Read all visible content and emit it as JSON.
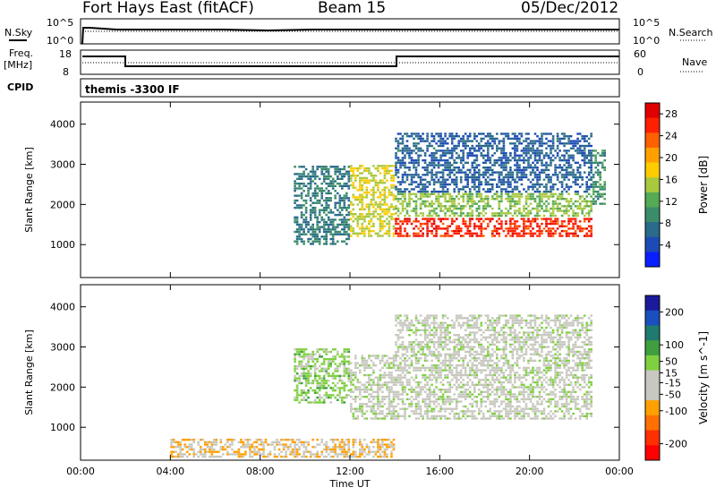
{
  "header": {
    "station": "Fort Hays East (fitACF)",
    "beam": "Beam 15",
    "date": "05/Dec/2012"
  },
  "strip": {
    "nsky_label": "N.Sky",
    "nsearch_label": "N.Search",
    "freq_label_1": "Freq.",
    "freq_label_2": "[MHz]",
    "nave_label": "Nave",
    "cpid_label": "CPID",
    "cpid_value": "themis -3300 IF",
    "noise_ticks": [
      "10^5",
      "10^0"
    ],
    "freq_ticks": [
      "18",
      "8"
    ],
    "nave_ticks": [
      "60",
      "0"
    ]
  },
  "colors": {
    "power_scale": [
      "#0a1fff",
      "#1c4bb5",
      "#2a6a8a",
      "#3b8c6b",
      "#55aa55",
      "#a8c840",
      "#ffcc00",
      "#ffa000",
      "#ff6000",
      "#ff2000",
      "#e00000"
    ],
    "velocity_scale": [
      "#1a1a9a",
      "#1a4fc0",
      "#1f7a70",
      "#3f9f3f",
      "#7fd040",
      "#c8c8c0",
      "#c8c8c0",
      "#ffa000",
      "#ff7000",
      "#ff3000",
      "#ff0000"
    ]
  },
  "chart_data": [
    {
      "type": "heatmap",
      "title": "Power",
      "xlabel": "Time UT",
      "ylabel": "Slant Range [km]",
      "xticks": [
        "00:00",
        "04:00",
        "08:00",
        "12:00",
        "16:00",
        "20:00",
        "00:00"
      ],
      "yticks": [
        1000,
        2000,
        3000,
        4000
      ],
      "xlim_hours": [
        0,
        24
      ],
      "ylim": [
        180,
        4550
      ],
      "colorbar": {
        "label": "Power [dB]",
        "ticks": [
          4,
          8,
          12,
          16,
          20,
          24,
          28
        ],
        "range": [
          0,
          30
        ]
      },
      "regions": [
        {
          "t": [
            9.5,
            12.0
          ],
          "r": [
            1000,
            3000
          ],
          "value": 8
        },
        {
          "t": [
            12.0,
            14.0
          ],
          "r": [
            1200,
            3000
          ],
          "value": 16
        },
        {
          "t": [
            14.0,
            22.8
          ],
          "r": [
            1200,
            1700
          ],
          "value": 26
        },
        {
          "t": [
            14.0,
            22.8
          ],
          "r": [
            1700,
            2300
          ],
          "value": 14
        },
        {
          "t": [
            14.0,
            22.8
          ],
          "r": [
            2300,
            3800
          ],
          "value": 6
        },
        {
          "t": [
            22.8,
            23.4
          ],
          "r": [
            2000,
            3400
          ],
          "value": 10
        }
      ]
    },
    {
      "type": "heatmap",
      "title": "Velocity",
      "xlabel": "Time UT",
      "ylabel": "Slant Range [km]",
      "xticks": [
        "00:00",
        "04:00",
        "08:00",
        "12:00",
        "16:00",
        "20:00",
        "00:00"
      ],
      "yticks": [
        1000,
        2000,
        3000,
        4000
      ],
      "xlim_hours": [
        0,
        24
      ],
      "ylim": [
        180,
        4550
      ],
      "colorbar": {
        "label": "Velocity [m s^-1]",
        "ticks": [
          200,
          100,
          50,
          15,
          -15,
          -50,
          -100,
          -200
        ],
        "range": [
          -250,
          250
        ]
      },
      "regions": [
        {
          "t": [
            9.5,
            12.0
          ],
          "r": [
            1600,
            3000
          ],
          "value": 40
        },
        {
          "t": [
            12.0,
            22.8
          ],
          "r": [
            1200,
            2800
          ],
          "value": 0
        },
        {
          "t": [
            14.0,
            22.8
          ],
          "r": [
            2800,
            3800
          ],
          "value": 0
        },
        {
          "t": [
            4.0,
            14.0
          ],
          "r": [
            250,
            700
          ],
          "value": -60
        }
      ]
    }
  ]
}
